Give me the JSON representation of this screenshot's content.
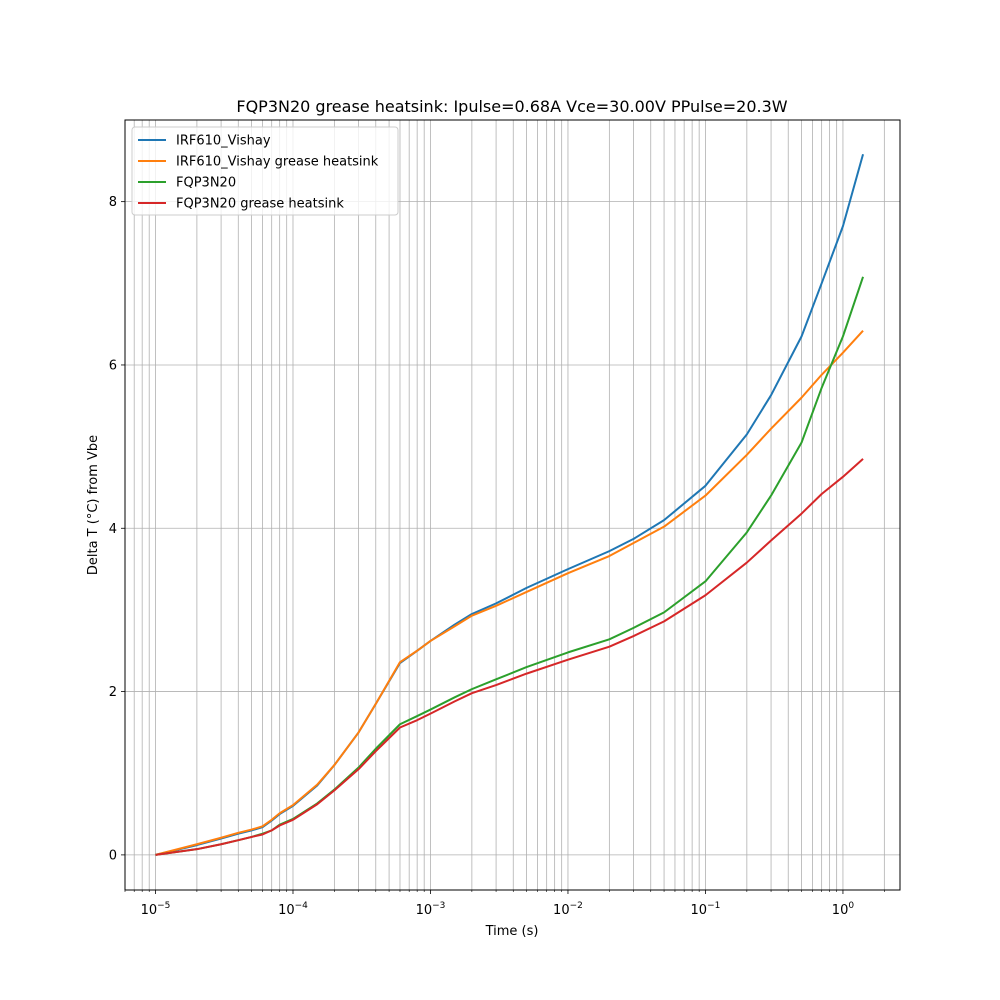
{
  "chart_data": {
    "type": "line",
    "title": "FQP3N20 grease heatsink: Ipulse=0.68A Vce=30.00V PPulse=20.3W",
    "xlabel": "Time (s)",
    "ylabel": "Delta T (°C) from Vbe",
    "xscale": "log",
    "xlim": [
      6e-06,
      2.6
    ],
    "ylim": [
      -0.43,
      9.0
    ],
    "xticks": [
      1e-05,
      0.0001,
      0.001,
      0.01,
      0.1,
      1
    ],
    "xtick_labels": [
      {
        "base": "10",
        "exp": "−5"
      },
      {
        "base": "10",
        "exp": "−4"
      },
      {
        "base": "10",
        "exp": "−3"
      },
      {
        "base": "10",
        "exp": "−2"
      },
      {
        "base": "10",
        "exp": "−1"
      },
      {
        "base": "10",
        "exp": "0"
      }
    ],
    "yticks": [
      0,
      2,
      4,
      6,
      8
    ],
    "ytick_labels": [
      "0",
      "2",
      "4",
      "6",
      "8"
    ],
    "grid": true,
    "legend_position": "top-left",
    "series": [
      {
        "name": "IRF610_Vishay",
        "color": "#1f77b4",
        "x": [
          1e-05,
          2e-05,
          3e-05,
          4e-05,
          5e-05,
          6e-05,
          7e-05,
          8e-05,
          0.0001,
          0.00015,
          0.0002,
          0.0003,
          0.0004,
          0.0006,
          0.0008,
          0.001,
          0.0015,
          0.002,
          0.003,
          0.005,
          0.01,
          0.02,
          0.03,
          0.05,
          0.1,
          0.2,
          0.3,
          0.5,
          0.7,
          1.0,
          1.4
        ],
        "y": [
          0.0,
          0.12,
          0.2,
          0.26,
          0.3,
          0.34,
          0.42,
          0.5,
          0.6,
          0.85,
          1.1,
          1.5,
          1.85,
          2.35,
          2.5,
          2.62,
          2.82,
          2.95,
          3.08,
          3.27,
          3.5,
          3.72,
          3.87,
          4.1,
          4.52,
          5.15,
          5.63,
          6.35,
          7.0,
          7.7,
          8.58
        ]
      },
      {
        "name": "IRF610_Vishay grease heatsink",
        "color": "#ff7f0e",
        "x": [
          1e-05,
          2e-05,
          3e-05,
          4e-05,
          5e-05,
          6e-05,
          7e-05,
          8e-05,
          0.0001,
          0.00015,
          0.0002,
          0.0003,
          0.0004,
          0.0006,
          0.0008,
          0.001,
          0.0015,
          0.002,
          0.003,
          0.005,
          0.01,
          0.02,
          0.03,
          0.05,
          0.1,
          0.2,
          0.3,
          0.5,
          0.7,
          1.0,
          1.4
        ],
        "y": [
          0.0,
          0.13,
          0.21,
          0.27,
          0.31,
          0.35,
          0.43,
          0.51,
          0.61,
          0.86,
          1.1,
          1.5,
          1.85,
          2.36,
          2.5,
          2.62,
          2.8,
          2.93,
          3.05,
          3.22,
          3.45,
          3.66,
          3.82,
          4.02,
          4.4,
          4.9,
          5.22,
          5.6,
          5.88,
          6.15,
          6.42
        ]
      },
      {
        "name": "FQP3N20",
        "color": "#2ca02c",
        "x": [
          1e-05,
          2e-05,
          3e-05,
          4e-05,
          5e-05,
          6e-05,
          7e-05,
          8e-05,
          0.0001,
          0.00015,
          0.0002,
          0.0003,
          0.0004,
          0.0006,
          0.0008,
          0.001,
          0.0015,
          0.002,
          0.003,
          0.005,
          0.01,
          0.02,
          0.03,
          0.05,
          0.1,
          0.2,
          0.3,
          0.5,
          0.7,
          1.0,
          1.4
        ],
        "y": [
          0.0,
          0.07,
          0.13,
          0.18,
          0.22,
          0.26,
          0.3,
          0.37,
          0.44,
          0.63,
          0.8,
          1.07,
          1.3,
          1.6,
          1.7,
          1.78,
          1.93,
          2.03,
          2.15,
          2.3,
          2.48,
          2.64,
          2.78,
          2.97,
          3.35,
          3.95,
          4.4,
          5.05,
          5.72,
          6.35,
          7.08
        ]
      },
      {
        "name": "FQP3N20 grease heatsink",
        "color": "#d62728",
        "x": [
          1e-05,
          2e-05,
          3e-05,
          4e-05,
          5e-05,
          6e-05,
          7e-05,
          8e-05,
          0.0001,
          0.00015,
          0.0002,
          0.0003,
          0.0004,
          0.0006,
          0.0008,
          0.001,
          0.0015,
          0.002,
          0.003,
          0.005,
          0.01,
          0.02,
          0.03,
          0.05,
          0.1,
          0.2,
          0.3,
          0.5,
          0.7,
          1.0,
          1.4
        ],
        "y": [
          0.0,
          0.07,
          0.13,
          0.18,
          0.22,
          0.25,
          0.3,
          0.36,
          0.43,
          0.62,
          0.79,
          1.05,
          1.27,
          1.56,
          1.65,
          1.73,
          1.88,
          1.98,
          2.08,
          2.22,
          2.39,
          2.55,
          2.68,
          2.86,
          3.18,
          3.58,
          3.85,
          4.18,
          4.42,
          4.63,
          4.85
        ]
      }
    ]
  }
}
